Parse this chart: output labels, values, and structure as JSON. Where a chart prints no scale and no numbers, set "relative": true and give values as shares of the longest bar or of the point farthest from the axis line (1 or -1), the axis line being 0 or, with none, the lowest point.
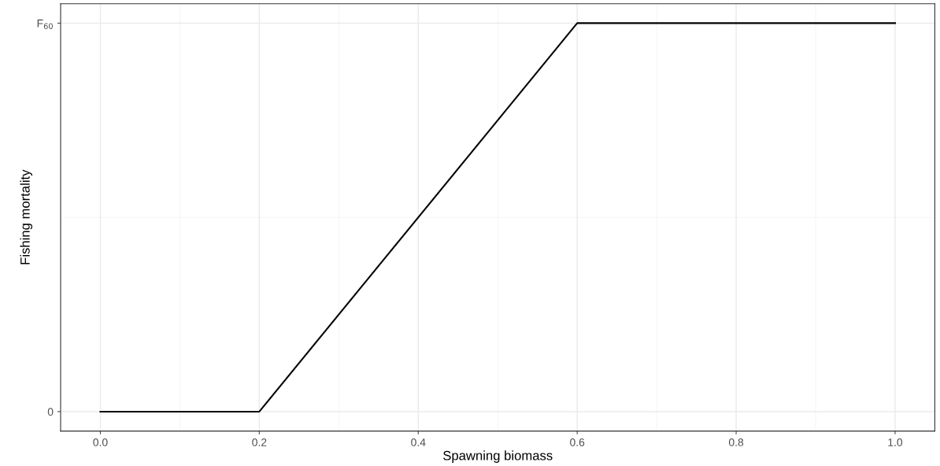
{
  "chart_data": {
    "type": "line",
    "xlabel": "Spawning biomass",
    "ylabel": "Fishing mortality",
    "x": [
      0.0,
      0.2,
      0.6,
      1.0
    ],
    "series": [
      {
        "color": "#000000",
        "values": [
          0,
          0,
          1,
          1
        ]
      }
    ],
    "xlim": [
      -0.05,
      1.05
    ],
    "xticks": [
      {
        "value": 0.0,
        "label": "0.0"
      },
      0.2,
      0.4,
      0.6,
      0.8,
      {
        "value": 1.0,
        "label": "1.0"
      }
    ],
    "relative": true,
    "annotations": [
      "0",
      "F$_{60}$"
    ],
    "grid": true,
    "line_style": "solid",
    "marker": "none"
  }
}
